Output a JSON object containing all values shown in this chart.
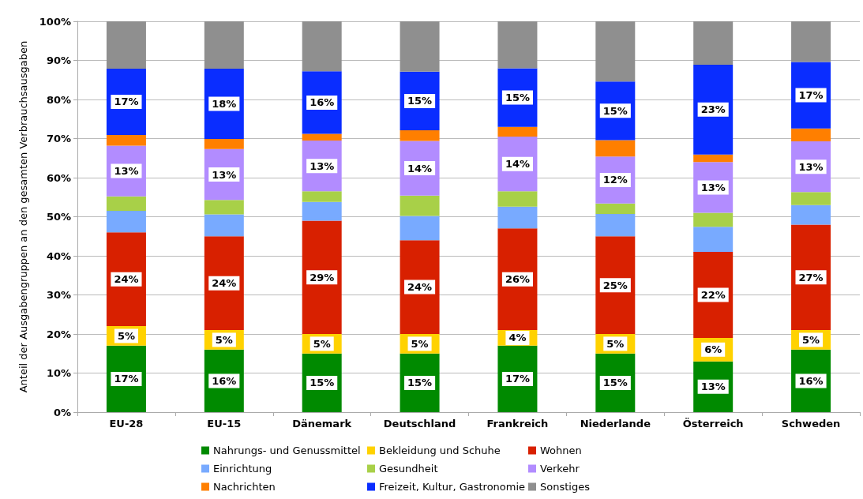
{
  "chart_data": {
    "type": "bar",
    "stacked": true,
    "ylabel": "Anteil der Ausgabengruppen an den gesamten Verbrauchsausgaben",
    "categories": [
      "EU-28",
      "EU-15",
      "Dänemark",
      "Deutschland",
      "Frankreich",
      "Niederlande",
      "Österreich",
      "Schweden"
    ],
    "ylim": [
      0,
      100
    ],
    "yticks": [
      {
        "value": 0,
        "label": "0%"
      },
      {
        "value": 10,
        "label": "10%"
      },
      {
        "value": 20,
        "label": "20%"
      },
      {
        "value": 30,
        "label": "30%"
      },
      {
        "value": 40,
        "label": "40%"
      },
      {
        "value": 50,
        "label": "50%"
      },
      {
        "value": 60,
        "label": "60%"
      },
      {
        "value": 70,
        "label": "70%"
      },
      {
        "value": 80,
        "label": "80%"
      },
      {
        "value": 90,
        "label": "90%"
      },
      {
        "value": 100,
        "label": "100%"
      }
    ],
    "grid": "y",
    "legend": "bottom",
    "series": [
      {
        "name": "Nahrungs- und Genussmittel",
        "color": "#008a00",
        "values": [
          17,
          16,
          15,
          15,
          17,
          15,
          13,
          16
        ],
        "value_labels": [
          "17%",
          "16%",
          "15%",
          "15%",
          "17%",
          "15%",
          "13%",
          "16%"
        ]
      },
      {
        "name": "Bekleidung und Schuhe",
        "color": "#ffd200",
        "values": [
          5,
          5,
          5,
          5,
          4,
          5,
          6,
          5
        ],
        "value_labels": [
          "5%",
          "5%",
          "5%",
          "5%",
          "4%",
          "5%",
          "6%",
          "5%"
        ]
      },
      {
        "name": "Wohnen",
        "color": "#d82000",
        "values": [
          24,
          24,
          29,
          24,
          26,
          25,
          22,
          27
        ],
        "value_labels": [
          "24%",
          "24%",
          "29%",
          "24%",
          "26%",
          "25%",
          "22%",
          "27%"
        ]
      },
      {
        "name": "Einrichtung",
        "color": "#78aaff",
        "values": [
          5.5,
          5.6,
          4.8,
          6.2,
          5.6,
          5.7,
          6.4,
          5.0
        ]
      },
      {
        "name": "Gesundheit",
        "color": "#a8d048",
        "values": [
          3.7,
          3.7,
          2.7,
          5.2,
          3.9,
          2.7,
          3.6,
          3.3
        ]
      },
      {
        "name": "Verkehr",
        "color": "#b28cff",
        "values": [
          13,
          13,
          13,
          14,
          14,
          12,
          13,
          13
        ],
        "value_labels": [
          "13%",
          "13%",
          "13%",
          "14%",
          "14%",
          "12%",
          "13%",
          "13%"
        ]
      },
      {
        "name": "Nachrichten",
        "color": "#ff7f00",
        "values": [
          2.7,
          2.6,
          1.7,
          2.7,
          2.5,
          4.2,
          1.9,
          3.3
        ]
      },
      {
        "name": "Freizeit, Kultur, Gastronomie",
        "color": "#0a2dff",
        "values": [
          17,
          18,
          16,
          15,
          15,
          15,
          23,
          17
        ],
        "value_labels": [
          "17%",
          "18%",
          "16%",
          "15%",
          "15%",
          "15%",
          "23%",
          "17%"
        ]
      },
      {
        "name": "Sonstiges",
        "color": "#8f8f8f",
        "values": [
          12.1,
          12.1,
          12.8,
          12.9,
          12,
          15.4,
          11.1,
          10.4
        ]
      }
    ]
  }
}
